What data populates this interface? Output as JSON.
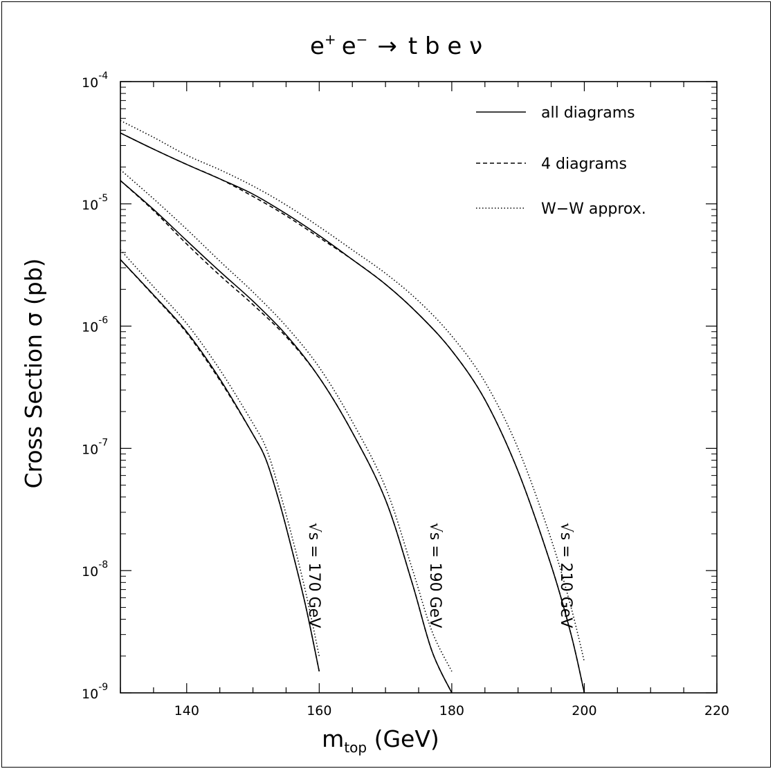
{
  "chart_data": {
    "type": "line",
    "title": "e⁺ e⁻ → t b e ν",
    "title_parts": {
      "e": "e",
      "plus": "+",
      "minus": "−",
      "arrow": "→",
      "rest": "t b e ν"
    },
    "xlabel": "m_top (GeV)",
    "xlabel_parts": {
      "m": "m",
      "sub": "top",
      "unit": " (GeV)"
    },
    "ylabel": "Cross Section σ (pb)",
    "xlim": [
      130,
      220
    ],
    "ylim": [
      1e-09,
      0.0001
    ],
    "yscale": "log",
    "x_ticks": [
      "140",
      "160",
      "180",
      "200",
      "220"
    ],
    "x_tick_values": [
      140,
      160,
      180,
      200,
      220
    ],
    "y_tick_exponents": [
      "-9",
      "-8",
      "-7",
      "-6",
      "-5",
      "-4"
    ],
    "y_tick_base": "10",
    "legend": {
      "placement": "top-right",
      "entries": [
        {
          "label": "all diagrams",
          "style": "solid"
        },
        {
          "label": "4 diagrams",
          "style": "dashed"
        },
        {
          "label": "W−W approx.",
          "style": "dotted"
        }
      ]
    },
    "curves": [
      {
        "label": "√s = 170 GeV",
        "all_diagrams": [
          [
            130,
            3.5e-06
          ],
          [
            135,
            1.8e-06
          ],
          [
            140,
            9e-07
          ],
          [
            145,
            3.7e-07
          ],
          [
            150,
            1.3e-07
          ],
          [
            152,
            8e-08
          ],
          [
            154,
            3.6e-08
          ],
          [
            156,
            1.4e-08
          ],
          [
            158,
            5e-09
          ],
          [
            160,
            1.5e-09
          ]
        ],
        "4_diagrams": [
          [
            130,
            3.5e-06
          ],
          [
            135,
            1.78e-06
          ],
          [
            140,
            8.8e-07
          ],
          [
            145,
            3.6e-07
          ],
          [
            150,
            1.3e-07
          ],
          [
            152,
            8e-08
          ],
          [
            154,
            3.6e-08
          ],
          [
            156,
            1.4e-08
          ],
          [
            158,
            5e-09
          ],
          [
            160,
            1.5e-09
          ]
        ],
        "ww_approx": [
          [
            130,
            4.2e-06
          ],
          [
            135,
            2.1e-06
          ],
          [
            140,
            1.05e-06
          ],
          [
            145,
            4.4e-07
          ],
          [
            150,
            1.6e-07
          ],
          [
            152,
            1e-07
          ],
          [
            154,
            4.5e-08
          ],
          [
            156,
            1.8e-08
          ],
          [
            158,
            6.5e-09
          ],
          [
            160,
            2e-09
          ]
        ]
      },
      {
        "label": "√s = 190 GeV",
        "all_diagrams": [
          [
            130,
            1.55e-05
          ],
          [
            135,
            9e-06
          ],
          [
            140,
            5e-06
          ],
          [
            145,
            2.8e-06
          ],
          [
            150,
            1.6e-06
          ],
          [
            155,
            8.5e-07
          ],
          [
            160,
            3.8e-07
          ],
          [
            165,
            1.35e-07
          ],
          [
            170,
            3.8e-08
          ],
          [
            174,
            8e-09
          ],
          [
            177,
            2.2e-09
          ],
          [
            180,
            1e-09
          ]
        ],
        "4_diagrams": [
          [
            130,
            1.55e-05
          ],
          [
            135,
            8.8e-06
          ],
          [
            140,
            4.7e-06
          ],
          [
            145,
            2.6e-06
          ],
          [
            150,
            1.5e-06
          ],
          [
            155,
            8.2e-07
          ],
          [
            160,
            3.8e-07
          ],
          [
            165,
            1.35e-07
          ],
          [
            170,
            3.8e-08
          ],
          [
            174,
            8e-09
          ],
          [
            177,
            2.2e-09
          ],
          [
            180,
            1e-09
          ]
        ],
        "ww_approx": [
          [
            130,
            1.9e-05
          ],
          [
            135,
            1.1e-05
          ],
          [
            140,
            6.2e-06
          ],
          [
            145,
            3.4e-06
          ],
          [
            150,
            1.9e-06
          ],
          [
            155,
            1e-06
          ],
          [
            160,
            4.6e-07
          ],
          [
            165,
            1.65e-07
          ],
          [
            170,
            4.8e-08
          ],
          [
            174,
            1.05e-08
          ],
          [
            177,
            3.2e-09
          ],
          [
            180,
            1.5e-09
          ]
        ]
      },
      {
        "label": "√s = 210 GeV",
        "all_diagrams": [
          [
            130,
            3.8e-05
          ],
          [
            135,
            2.8e-05
          ],
          [
            140,
            2.1e-05
          ],
          [
            145,
            1.6e-05
          ],
          [
            150,
            1.2e-05
          ],
          [
            155,
            8.3e-06
          ],
          [
            160,
            5.5e-06
          ],
          [
            165,
            3.5e-06
          ],
          [
            170,
            2.2e-06
          ],
          [
            175,
            1.25e-06
          ],
          [
            180,
            6.3e-07
          ],
          [
            185,
            2.5e-07
          ],
          [
            190,
            6.5e-08
          ],
          [
            195,
            1.1e-08
          ],
          [
            198,
            3e-09
          ],
          [
            200,
            1e-09
          ]
        ],
        "4_diagrams": [
          [
            130,
            3.8e-05
          ],
          [
            135,
            2.8e-05
          ],
          [
            140,
            2.1e-05
          ],
          [
            145,
            1.6e-05
          ],
          [
            150,
            1.15e-05
          ],
          [
            155,
            8e-06
          ],
          [
            160,
            5.3e-06
          ],
          [
            165,
            3.5e-06
          ],
          [
            170,
            2.2e-06
          ],
          [
            175,
            1.25e-06
          ],
          [
            180,
            6.3e-07
          ],
          [
            185,
            2.5e-07
          ],
          [
            190,
            6.5e-08
          ],
          [
            195,
            1.1e-08
          ],
          [
            198,
            3e-09
          ],
          [
            200,
            1e-09
          ]
        ],
        "ww_approx": [
          [
            130,
            4.8e-05
          ],
          [
            135,
            3.5e-05
          ],
          [
            140,
            2.5e-05
          ],
          [
            145,
            1.9e-05
          ],
          [
            150,
            1.4e-05
          ],
          [
            155,
            9.8e-06
          ],
          [
            160,
            6.5e-06
          ],
          [
            165,
            4.2e-06
          ],
          [
            170,
            2.7e-06
          ],
          [
            175,
            1.6e-06
          ],
          [
            180,
            8.3e-07
          ],
          [
            185,
            3.5e-07
          ],
          [
            190,
            1e-07
          ],
          [
            195,
            1.8e-08
          ],
          [
            198,
            5e-09
          ],
          [
            200,
            1.8e-09
          ]
        ]
      }
    ]
  }
}
